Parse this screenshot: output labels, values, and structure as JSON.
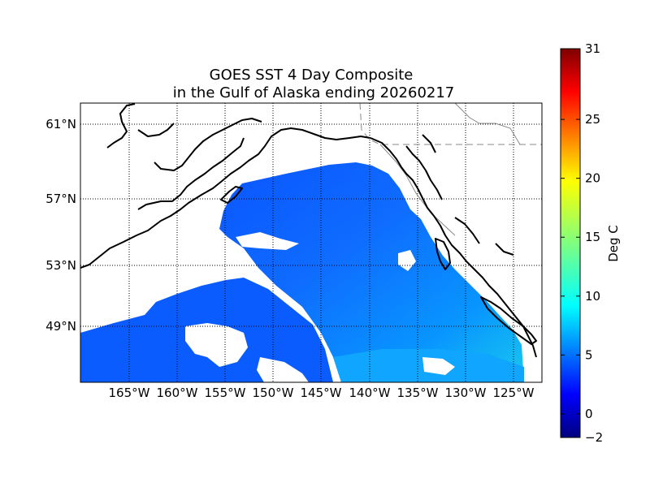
{
  "title": {
    "line1": "GOES SST 4 Day Composite",
    "line2": "in the Gulf of Alaska ending 20260217"
  },
  "map": {
    "projection": "equirectangular",
    "lon_range": [
      -170,
      -123
    ],
    "lat_range": [
      45,
      62
    ],
    "land_color": "#ffffff",
    "cloud_color": "#ffffff",
    "coastline_color": "#000000",
    "border_color": "#888888",
    "gridlines": "dotted",
    "latitude_labels": [
      "61°N",
      "57°N",
      "53°N",
      "49°N"
    ],
    "longitude_labels": [
      "165°W",
      "160°W",
      "155°W",
      "150°W",
      "145°W",
      "140°W",
      "135°W",
      "130°W",
      "125°W"
    ]
  },
  "colorbar": {
    "label": "Deg C",
    "colormap": "jet",
    "min": -2,
    "max": 31,
    "ticks": [
      "31",
      "25",
      "20",
      "15",
      "10",
      "5",
      "0",
      "−2"
    ]
  }
}
